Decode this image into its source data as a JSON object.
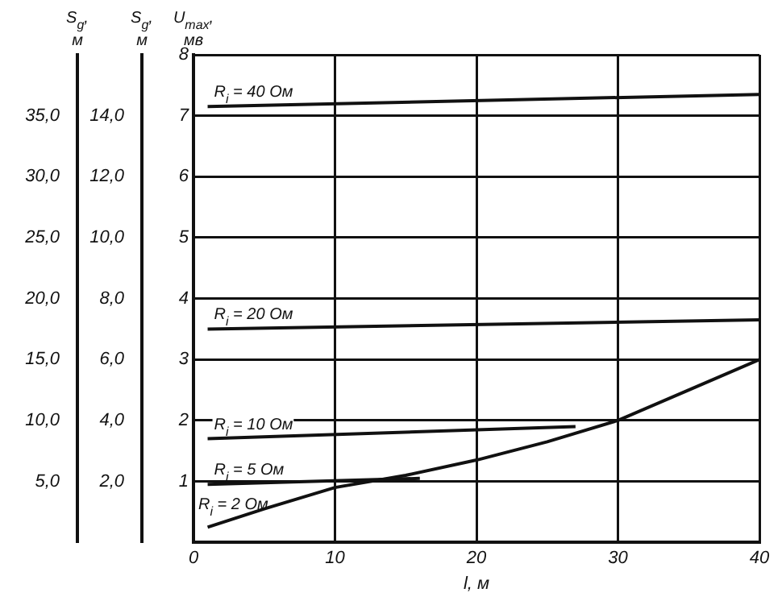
{
  "chart_data": {
    "type": "line",
    "xlabel": "l, м",
    "ylabel": "U$_{max}$, мв",
    "y2label": "S$_{g}$, м",
    "y3label": "S$_{g}$, м",
    "xlim": [
      0,
      40
    ],
    "xticks": [
      0,
      10,
      20,
      30,
      40
    ],
    "ylim": [
      0,
      8
    ],
    "yticks": [
      1,
      2,
      3,
      4,
      5,
      6,
      7,
      8
    ],
    "y2lim": [
      0,
      40
    ],
    "y2ticks": [
      {
        "value": 5,
        "label": "5,0"
      },
      {
        "value": 10,
        "label": "10,0"
      },
      {
        "value": 15,
        "label": "15,0"
      },
      {
        "value": 20,
        "label": "20,0"
      },
      {
        "value": 25,
        "label": "25,0"
      },
      {
        "value": 30,
        "label": "30,0"
      },
      {
        "value": 35,
        "label": "35,0"
      }
    ],
    "y3lim": [
      0,
      16
    ],
    "y3ticks": [
      {
        "value": 2,
        "label": "2,0"
      },
      {
        "value": 4,
        "label": "4,0"
      },
      {
        "value": 6,
        "label": "6,0"
      },
      {
        "value": 8,
        "label": "8,0"
      },
      {
        "value": 10,
        "label": "10,0"
      },
      {
        "value": 12,
        "label": "12,0"
      },
      {
        "value": 14,
        "label": "14,0"
      }
    ],
    "grid": true,
    "legend": false,
    "marker": "none",
    "line_style": "solid",
    "series": [
      {
        "name": "R$_{i}$ = 40 Ом",
        "color": "#111111",
        "x": [
          1,
          40
        ],
        "values": [
          7.15,
          7.35
        ]
      },
      {
        "name": "R$_{i}$ = 20 Ом",
        "color": "#111111",
        "x": [
          1,
          40
        ],
        "values": [
          3.5,
          3.65
        ]
      },
      {
        "name": "R$_{i}$ = 10 Ом",
        "color": "#111111",
        "x": [
          1,
          27
        ],
        "values": [
          1.7,
          1.9
        ]
      },
      {
        "name": "R$_{i}$ = 5 Ом",
        "color": "#111111",
        "x": [
          1,
          16
        ],
        "values": [
          0.95,
          1.05
        ]
      },
      {
        "name": "R$_{i}$ = 2 Ом",
        "color": "#111111",
        "x": [
          1,
          5,
          10,
          15,
          20,
          25,
          30,
          35,
          40
        ],
        "values": [
          0.25,
          0.55,
          0.9,
          1.1,
          1.35,
          1.65,
          2.0,
          2.5,
          3.0
        ]
      }
    ]
  }
}
